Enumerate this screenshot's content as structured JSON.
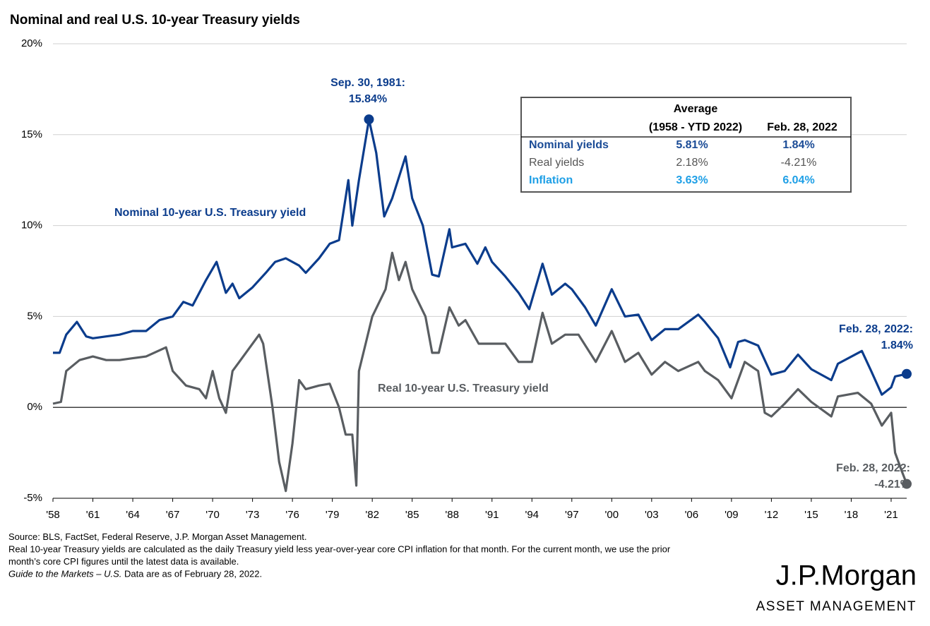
{
  "chart_data": {
    "type": "line",
    "title": "Nominal and real U.S. 10-year Treasury yields",
    "xlim": [
      1958,
      2022.17
    ],
    "xticks": [
      {
        "value": 1958,
        "label": "'58"
      },
      {
        "value": 1961,
        "label": "'61"
      },
      {
        "value": 1964,
        "label": "'64"
      },
      {
        "value": 1967,
        "label": "'67"
      },
      {
        "value": 1970,
        "label": "'70"
      },
      {
        "value": 1973,
        "label": "'73"
      },
      {
        "value": 1976,
        "label": "'76"
      },
      {
        "value": 1979,
        "label": "'79"
      },
      {
        "value": 1982,
        "label": "'82"
      },
      {
        "value": 1985,
        "label": "'85"
      },
      {
        "value": 1988,
        "label": "'88"
      },
      {
        "value": 1991,
        "label": "'91"
      },
      {
        "value": 1994,
        "label": "'94"
      },
      {
        "value": 1997,
        "label": "'97"
      },
      {
        "value": 2000,
        "label": "'00"
      },
      {
        "value": 2003,
        "label": "'03"
      },
      {
        "value": 2006,
        "label": "'06"
      },
      {
        "value": 2009,
        "label": "'09"
      },
      {
        "value": 2012,
        "label": "'12"
      },
      {
        "value": 2015,
        "label": "'15"
      },
      {
        "value": 2018,
        "label": "'18"
      },
      {
        "value": 2021,
        "label": "'21"
      }
    ],
    "ylim": [
      -5,
      20
    ],
    "yticks": [
      {
        "value": -5,
        "label": "-5%"
      },
      {
        "value": 0,
        "label": "0%"
      },
      {
        "value": 5,
        "label": "5%"
      },
      {
        "value": 10,
        "label": "10%"
      },
      {
        "value": 15,
        "label": "15%"
      },
      {
        "value": 20,
        "label": "20%"
      }
    ],
    "grid": true,
    "series": [
      {
        "name": "Nominal 10-year U.S. Treasury yield",
        "color": "#0b3c8c",
        "x": [
          1958,
          1958.5,
          1959,
          1959.8,
          1960.5,
          1961,
          1962,
          1963,
          1964,
          1965,
          1966,
          1967,
          1967.8,
          1968.5,
          1969.5,
          1970.3,
          1971,
          1971.5,
          1972,
          1973,
          1974,
          1974.7,
          1975.5,
          1976.5,
          1977,
          1978,
          1978.8,
          1979.5,
          1980.2,
          1980.5,
          1981,
          1981.75,
          1982.3,
          1982.9,
          1983.5,
          1984.5,
          1985,
          1985.8,
          1986.5,
          1987,
          1987.8,
          1988,
          1989,
          1989.9,
          1990.5,
          1991,
          1992,
          1993,
          1993.8,
          1994.8,
          1995.5,
          1996.5,
          1997,
          1998,
          1998.8,
          2000,
          2001,
          2002,
          2003,
          2004,
          2005,
          2006.5,
          2007,
          2008,
          2008.9,
          2009.5,
          2010,
          2011,
          2012,
          2013,
          2014,
          2015,
          2016.5,
          2017,
          2018.8,
          2019.5,
          2020.3,
          2021,
          2021.3,
          2022.17
        ],
        "values": [
          3.0,
          3.0,
          4.0,
          4.7,
          3.9,
          3.8,
          3.9,
          4.0,
          4.2,
          4.2,
          4.8,
          5.0,
          5.8,
          5.6,
          7.0,
          8.0,
          6.3,
          6.8,
          6.0,
          6.6,
          7.4,
          8.0,
          8.2,
          7.8,
          7.4,
          8.2,
          9.0,
          9.2,
          12.5,
          10.0,
          12.5,
          15.84,
          14.0,
          10.5,
          11.5,
          13.8,
          11.5,
          10.0,
          7.3,
          7.2,
          9.8,
          8.8,
          9.0,
          7.9,
          8.8,
          8.0,
          7.2,
          6.3,
          5.4,
          7.9,
          6.2,
          6.8,
          6.5,
          5.5,
          4.5,
          6.5,
          5.0,
          5.1,
          3.7,
          4.3,
          4.3,
          5.1,
          4.7,
          3.8,
          2.2,
          3.6,
          3.7,
          3.4,
          1.8,
          2.0,
          2.9,
          2.1,
          1.5,
          2.4,
          3.1,
          2.0,
          0.7,
          1.1,
          1.7,
          1.84
        ]
      },
      {
        "name": "Real 10-year U.S. Treasury yield",
        "color": "#595d61",
        "x": [
          1958,
          1958.6,
          1959,
          1960,
          1961,
          1962,
          1963,
          1964,
          1965,
          1966.5,
          1967,
          1968,
          1969,
          1969.5,
          1970,
          1970.5,
          1971,
          1971.5,
          1972,
          1972.5,
          1973.5,
          1973.8,
          1974.5,
          1975,
          1975.5,
          1976,
          1976.5,
          1977,
          1978,
          1978.8,
          1979.5,
          1980,
          1980.5,
          1980.8,
          1981,
          1981.5,
          1982,
          1983,
          1983.5,
          1984,
          1984.5,
          1985,
          1986,
          1986.5,
          1987,
          1987.8,
          1988.5,
          1989,
          1990,
          1991,
          1992,
          1993,
          1994,
          1994.8,
          1995.5,
          1996.5,
          1997.5,
          1998.8,
          2000,
          2001,
          2002,
          2003,
          2004,
          2005,
          2006.5,
          2007,
          2008,
          2009,
          2010,
          2011,
          2011.5,
          2012,
          2013,
          2014,
          2015,
          2016.5,
          2017,
          2018.5,
          2019.5,
          2020.3,
          2021,
          2021.3,
          2021.8,
          2022.17
        ],
        "values": [
          0.2,
          0.3,
          2.0,
          2.6,
          2.8,
          2.6,
          2.6,
          2.7,
          2.8,
          3.3,
          2.0,
          1.2,
          1.0,
          0.5,
          2.0,
          0.5,
          -0.3,
          2.0,
          2.5,
          3.0,
          4.0,
          3.5,
          0.0,
          -3.0,
          -4.6,
          -2.0,
          1.5,
          1.0,
          1.2,
          1.3,
          0.0,
          -1.5,
          -1.5,
          -4.3,
          2.0,
          3.5,
          5.0,
          6.5,
          8.5,
          7.0,
          8.0,
          6.5,
          5.0,
          3.0,
          3.0,
          5.5,
          4.5,
          4.8,
          3.5,
          3.5,
          3.5,
          2.5,
          2.5,
          5.2,
          3.5,
          4.0,
          4.0,
          2.5,
          4.2,
          2.5,
          3.0,
          1.8,
          2.5,
          2.0,
          2.5,
          2.0,
          1.5,
          0.5,
          2.5,
          2.0,
          -0.3,
          -0.5,
          0.2,
          1.0,
          0.3,
          -0.5,
          0.6,
          0.8,
          0.2,
          -1.0,
          -0.3,
          -2.5,
          -3.5,
          -4.21
        ]
      }
    ],
    "annotations": [
      {
        "lines": [
          "Sep. 30, 1981:",
          "15.84%"
        ]
      },
      {
        "lines": [
          "Feb. 28, 2022:",
          "1.84%"
        ]
      },
      {
        "lines": [
          "Feb. 28, 2022:",
          "-4.21%"
        ]
      }
    ],
    "table": {
      "group": "Average",
      "columns": [
        "(1958 - YTD 2022)",
        "Feb. 28, 2022"
      ],
      "rows": [
        {
          "label": "Nominal yields",
          "color": "#1a4b96",
          "cells": [
            "5.81%",
            "1.84%"
          ]
        },
        {
          "label": "Real yields",
          "color": "#555555",
          "cells": [
            "2.18%",
            "-4.21%"
          ]
        },
        {
          "label": "Inflation",
          "color": "#1e9fe6",
          "cells": [
            "3.63%",
            "6.04%"
          ]
        }
      ]
    },
    "footnotes": [
      [
        "Source: BLS, FactSet, Federal Reserve, J.P. Morgan Asset Management."
      ],
      [
        "Real 10-year Treasury yields are calculated as the daily Treasury yield less year-over-year core CPI inflation for that month. For the current month, we use the prior"
      ],
      [
        "month’s core CPI figures until the latest data is available."
      ],
      [
        "Guide to the Markets – U.S.",
        " Data are as of February 28, 2022."
      ]
    ],
    "logo": [
      "J.P.Morgan",
      "ASSET MANAGEMENT"
    ]
  }
}
